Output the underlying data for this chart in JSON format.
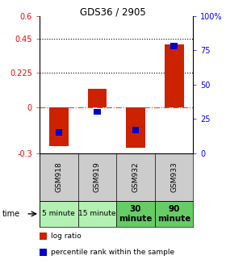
{
  "title": "GDS36 / 2905",
  "samples": [
    "GSM918",
    "GSM919",
    "GSM932",
    "GSM933"
  ],
  "time_labels": [
    "5 minute",
    "15 minute",
    "30\nminute",
    "90\nminute"
  ],
  "time_bg_colors": [
    "#b3f0b3",
    "#b3f0b3",
    "#66cc66",
    "#66cc66"
  ],
  "log_ratios": [
    -0.255,
    0.12,
    -0.265,
    0.415
  ],
  "percentile_ranks": [
    15,
    30,
    17,
    78
  ],
  "bar_color": "#cc2200",
  "percentile_color": "#0000cc",
  "ylim": [
    -0.3,
    0.6
  ],
  "ylim_right": [
    0,
    100
  ],
  "yticks_left": [
    -0.3,
    0,
    0.225,
    0.45,
    0.6
  ],
  "yticks_right": [
    0,
    25,
    50,
    75,
    100
  ],
  "hlines": [
    0.225,
    0.45
  ],
  "zero_line": 0.0,
  "bar_width": 0.5,
  "legend_log_ratio": "log ratio",
  "legend_percentile": "percentile rank within the sample",
  "time_label": "time"
}
